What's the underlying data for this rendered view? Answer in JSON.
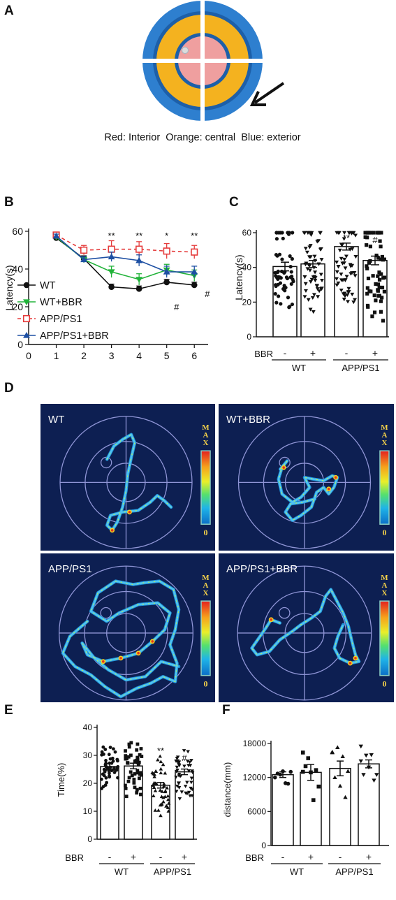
{
  "panels": {
    "A": {
      "label": "A",
      "caption": "Red: Interior  Orange: central  Blue: exterior",
      "colors": {
        "exterior": "#2e7fcf",
        "exterior_dark": "#1d5fa8",
        "central": "#f4b21f",
        "interior": "#ef9f9f",
        "cross": "#ffffff",
        "arrow": "#111111"
      }
    },
    "B": {
      "label": "B",
      "chart_data": {
        "type": "line",
        "ylabel": "Latency(s)",
        "xlabel": "",
        "x": [
          1,
          2,
          3,
          4,
          5,
          6
        ],
        "xticks": [
          "0",
          "1",
          "2",
          "3",
          "4",
          "5",
          "6"
        ],
        "xlim": [
          0,
          6.5
        ],
        "yticks": [
          "0",
          "20",
          "40",
          "60"
        ],
        "ylim": [
          0,
          60
        ],
        "series": [
          {
            "name": "WT",
            "values": [
              56.5,
              45.5,
              30.5,
              29.5,
              33,
              31.5
            ],
            "err": [
              1,
              1.5,
              1.5,
              1.5,
              1.5,
              1.5
            ],
            "color": "#111111",
            "marker": "circle",
            "dash": false
          },
          {
            "name": "WT+BBR",
            "values": [
              57,
              45,
              38.5,
              34.5,
              39.5,
              36.5
            ],
            "err": [
              1,
              1.5,
              3,
              3,
              3,
              3
            ],
            "color": "#22b33a",
            "marker": "triangle-down",
            "dash": false
          },
          {
            "name": "APP/PS1",
            "values": [
              58,
              50,
              50.5,
              50.5,
              49.5,
              49
            ],
            "err": [
              1,
              2.5,
              4.5,
              4,
              4,
              3.5
            ],
            "color": "#e53b3b",
            "marker": "square-open",
            "dash": true
          },
          {
            "name": "APP/PS1+BBR",
            "values": [
              57.5,
              45,
              46.5,
              44.5,
              38.5,
              38.5
            ],
            "err": [
              1,
              1.5,
              2.5,
              3,
              3,
              3
            ],
            "color": "#1d4fa3",
            "marker": "triangle-up",
            "dash": false
          }
        ],
        "annotations": [
          {
            "x": 3,
            "text": "**",
            "level": "top"
          },
          {
            "x": 4,
            "text": "**",
            "level": "top"
          },
          {
            "x": 5,
            "text": "*",
            "level": "top"
          },
          {
            "x": 6,
            "text": "**",
            "level": "top"
          },
          {
            "x": 5,
            "text": "#",
            "level": "low"
          },
          {
            "x": 6,
            "text": "#",
            "level": "side"
          }
        ]
      }
    },
    "C": {
      "label": "C",
      "chart_data": {
        "type": "bar",
        "ylabel": "Latency(s)",
        "categories": [
          "WT -BBR",
          "WT +BBR",
          "APP/PS1 -BBR",
          "APP/PS1 +BBR"
        ],
        "values": [
          40.5,
          42,
          52,
          44
        ],
        "err": [
          2.5,
          2,
          2,
          2.5
        ],
        "ylim": [
          0,
          60
        ],
        "yticks": [
          "0",
          "20",
          "40",
          "60"
        ],
        "markers": [
          "circle",
          "triangle-down",
          "triangle-down",
          "square"
        ],
        "annotations": [
          "",
          "",
          "**",
          "#"
        ]
      },
      "bbr_row": {
        "label": "BBR",
        "signs": [
          "-",
          "+",
          "-",
          "+"
        ]
      },
      "groups": [
        "WT",
        "APP/PS1"
      ]
    },
    "D": {
      "label": "D",
      "tiles": [
        {
          "name": "WT"
        },
        {
          "name": "WT+BBR"
        },
        {
          "name": "APP/PS1"
        },
        {
          "name": "APP/PS1+BBR"
        }
      ],
      "colorbar": {
        "top": "MAX",
        "bottom": "0"
      },
      "colors": {
        "background": "#0d1f52",
        "ring": "#8f95d6",
        "track": "#4ec3f2"
      }
    },
    "E": {
      "label": "E",
      "chart_data": {
        "type": "bar",
        "ylabel": "Time(%)",
        "categories": [
          "WT -BBR",
          "WT +BBR",
          "APP/PS1 -BBR",
          "APP/PS1 +BBR"
        ],
        "values": [
          26,
          26.2,
          19.3,
          24.1
        ],
        "err": [
          1,
          1,
          1,
          1
        ],
        "ylim": [
          0,
          40
        ],
        "yticks": [
          "0",
          "10",
          "20",
          "30",
          "40"
        ],
        "markers": [
          "circle",
          "square",
          "triangle-up",
          "triangle-down"
        ],
        "annotations": [
          "",
          "",
          "**",
          "#"
        ]
      },
      "bbr_row": {
        "label": "BBR",
        "signs": [
          "-",
          "+",
          "-",
          "+"
        ]
      },
      "groups": [
        "WT",
        "APP/PS1"
      ]
    },
    "F": {
      "label": "F",
      "chart_data": {
        "type": "bar",
        "ylabel": "distance(mm)",
        "categories": [
          "WT -BBR",
          "WT +BBR",
          "APP/PS1 -BBR",
          "APP/PS1 +BBR"
        ],
        "values": [
          12500,
          12900,
          13600,
          14400
        ],
        "err": [
          500,
          1400,
          1300,
          700
        ],
        "ylim": [
          0,
          18000
        ],
        "yticks": [
          "0",
          "6000",
          "12000",
          "18000"
        ],
        "markers": [
          "circle",
          "square",
          "triangle-up",
          "triangle-down"
        ],
        "points": [
          [
            12000,
            12500,
            11000,
            13000,
            12700,
            13100,
            10900
          ],
          [
            16400,
            15400,
            8000,
            10400,
            14000,
            12900,
            13300,
            13000
          ],
          [
            16500,
            17300,
            15700,
            13100,
            12000,
            10500,
            8500,
            16400
          ],
          [
            17500,
            15900,
            16000,
            12500,
            12500,
            13800,
            11500,
            14900
          ]
        ]
      },
      "bbr_row": {
        "label": "BBR",
        "signs": [
          "-",
          "+",
          "-",
          "+"
        ]
      },
      "groups": [
        "WT",
        "APP/PS1"
      ]
    }
  }
}
